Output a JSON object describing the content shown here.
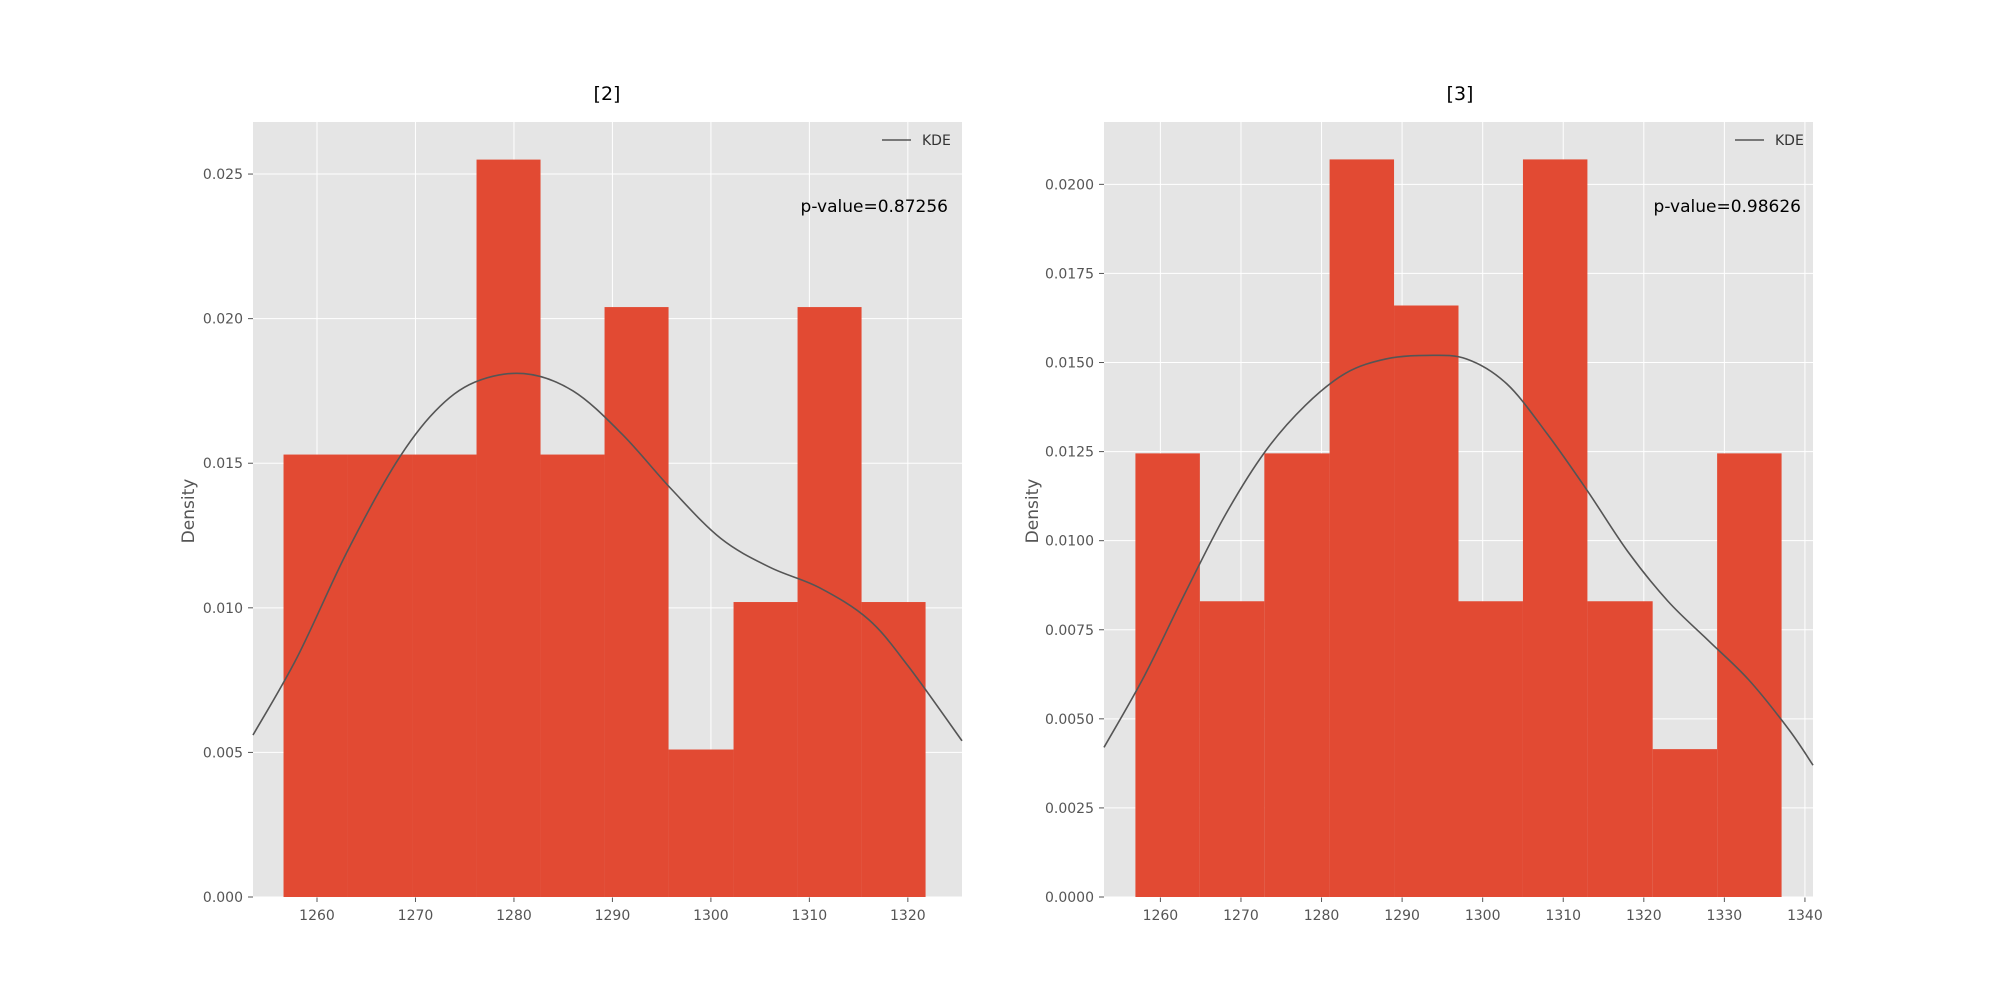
{
  "colors": {
    "background": "#ffffff",
    "axes_face": "#e5e5e5",
    "grid": "#ffffff",
    "bar": "#e24a33",
    "kde": "#555555",
    "tick_text": "#555555"
  },
  "chart_data": [
    {
      "type": "bar",
      "title": "[2]",
      "ylabel": "Density",
      "xlabel": "",
      "grid": true,
      "legend": {
        "placement": "top-right",
        "entries": [
          "KDE"
        ]
      },
      "annotation": "p-value=0.87256",
      "xlim": [
        1253.5,
        1325.5
      ],
      "ylim": [
        0,
        0.0268
      ],
      "x_ticks": [
        1260,
        1270,
        1280,
        1290,
        1300,
        1310,
        1320
      ],
      "y_ticks": [
        0.0,
        0.005,
        0.01,
        0.015,
        0.02,
        0.025
      ],
      "y_tick_labels": [
        "0.000",
        "0.005",
        "0.010",
        "0.015",
        "0.020",
        "0.025"
      ],
      "bins": [
        {
          "x0": 1256.6,
          "x1": 1263.1,
          "value": 0.0153
        },
        {
          "x0": 1263.1,
          "x1": 1269.7,
          "value": 0.0153
        },
        {
          "x0": 1269.7,
          "x1": 1276.2,
          "value": 0.0153
        },
        {
          "x0": 1276.2,
          "x1": 1282.7,
          "value": 0.0255
        },
        {
          "x0": 1282.7,
          "x1": 1289.2,
          "value": 0.0153
        },
        {
          "x0": 1289.2,
          "x1": 1295.7,
          "value": 0.0204
        },
        {
          "x0": 1295.7,
          "x1": 1302.3,
          "value": 0.0051
        },
        {
          "x0": 1302.3,
          "x1": 1308.8,
          "value": 0.0102
        },
        {
          "x0": 1308.8,
          "x1": 1315.3,
          "value": 0.0204
        },
        {
          "x0": 1315.3,
          "x1": 1321.8,
          "value": 0.0102
        }
      ],
      "series": [
        {
          "name": "KDE",
          "x": [
            1253.5,
            1258,
            1263,
            1268,
            1272,
            1276,
            1281,
            1286,
            1291,
            1296,
            1301,
            1306,
            1311,
            1316,
            1320,
            1325.5
          ],
          "y": [
            0.0056,
            0.0083,
            0.0119,
            0.015,
            0.0168,
            0.0178,
            0.0181,
            0.0175,
            0.016,
            0.0141,
            0.0124,
            0.0114,
            0.0107,
            0.0096,
            0.008,
            0.0054
          ]
        }
      ]
    },
    {
      "type": "bar",
      "title": "[3]",
      "ylabel": "Density",
      "xlabel": "",
      "grid": true,
      "legend": {
        "placement": "top-right",
        "entries": [
          "KDE"
        ]
      },
      "annotation": "p-value=0.98626",
      "xlim": [
        1253.0,
        1341.0
      ],
      "ylim": [
        0,
        0.02175
      ],
      "x_ticks": [
        1260,
        1270,
        1280,
        1290,
        1300,
        1310,
        1320,
        1330,
        1340
      ],
      "y_ticks": [
        0.0,
        0.0025,
        0.005,
        0.0075,
        0.01,
        0.0125,
        0.015,
        0.0175,
        0.02
      ],
      "y_tick_labels": [
        "0.0000",
        "0.0025",
        "0.0050",
        "0.0075",
        "0.0100",
        "0.0125",
        "0.0150",
        "0.0175",
        "0.0200"
      ],
      "bins": [
        {
          "x0": 1256.9,
          "x1": 1264.9,
          "value": 0.01245
        },
        {
          "x0": 1264.9,
          "x1": 1272.9,
          "value": 0.0083
        },
        {
          "x0": 1272.9,
          "x1": 1281.0,
          "value": 0.01245
        },
        {
          "x0": 1281.0,
          "x1": 1289.0,
          "value": 0.0207
        },
        {
          "x0": 1289.0,
          "x1": 1297.0,
          "value": 0.0166
        },
        {
          "x0": 1297.0,
          "x1": 1305.0,
          "value": 0.0083
        },
        {
          "x0": 1305.0,
          "x1": 1313.0,
          "value": 0.0207
        },
        {
          "x0": 1313.0,
          "x1": 1321.1,
          "value": 0.0083
        },
        {
          "x0": 1321.1,
          "x1": 1329.1,
          "value": 0.00415
        },
        {
          "x0": 1329.1,
          "x1": 1337.1,
          "value": 0.01245
        }
      ],
      "series": [
        {
          "name": "KDE",
          "x": [
            1253,
            1258,
            1263,
            1268,
            1273,
            1278,
            1283,
            1288,
            1293,
            1298,
            1303,
            1308,
            1313,
            1318,
            1323,
            1328,
            1333,
            1338,
            1341
          ],
          "y": [
            0.0042,
            0.0062,
            0.0085,
            0.0107,
            0.0125,
            0.0138,
            0.0147,
            0.0151,
            0.0152,
            0.0151,
            0.0144,
            0.013,
            0.0114,
            0.0097,
            0.0083,
            0.0072,
            0.0061,
            0.0047,
            0.0037
          ]
        }
      ]
    }
  ]
}
